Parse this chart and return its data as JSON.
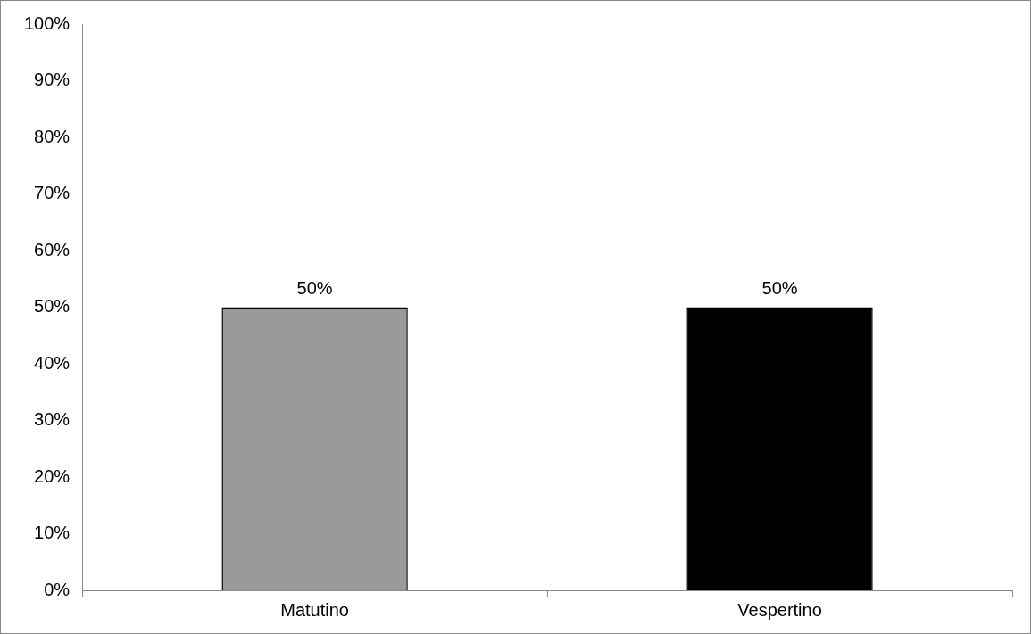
{
  "chart_data": {
    "type": "bar",
    "categories": [
      "Matutino",
      "Vespertino"
    ],
    "values": [
      50,
      50
    ],
    "colors": [
      "#9a9a9a",
      "#000000"
    ],
    "ylim": [
      0,
      100
    ],
    "yticks": [
      {
        "value": 0,
        "label": "0%"
      },
      {
        "value": 10,
        "label": "10%"
      },
      {
        "value": 20,
        "label": "20%"
      },
      {
        "value": 30,
        "label": "30%"
      },
      {
        "value": 40,
        "label": "40%"
      },
      {
        "value": 50,
        "label": "50%"
      },
      {
        "value": 60,
        "label": "60%"
      },
      {
        "value": 70,
        "label": "70%"
      },
      {
        "value": 80,
        "label": "80%"
      },
      {
        "value": 90,
        "label": "90%"
      },
      {
        "value": 100,
        "label": "100%"
      }
    ],
    "value_labels": [
      "50%",
      "50%"
    ],
    "grid": false,
    "legend": false
  }
}
